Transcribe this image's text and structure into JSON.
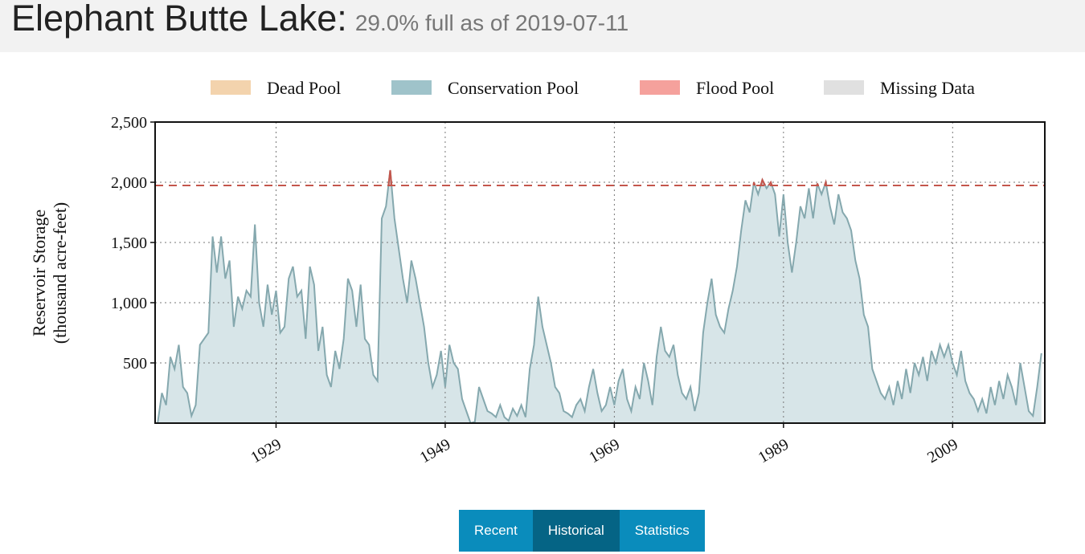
{
  "header": {
    "title": "Elephant Butte Lake:",
    "subtitle": "29.0% full as of 2019-07-11"
  },
  "chart_data": {
    "type": "area",
    "legend": [
      {
        "name": "Dead Pool",
        "color": "#f3d3ad"
      },
      {
        "name": "Conservation Pool",
        "color": "#9fc3ca"
      },
      {
        "name": "Flood Pool",
        "color": "#f5a19c"
      },
      {
        "name": "Missing Data",
        "color": "#e0e0e0"
      }
    ],
    "y_label": [
      "Reservoir Storage",
      "(thousand acre-feet)"
    ],
    "flood_pool": 1973,
    "flood_color": "#c4564c",
    "fill_color": "#d7e5e8",
    "line_color": "#85a8ae",
    "grid": true,
    "xlim": [
      1914.7,
      2019.9
    ],
    "xticks": [
      1929,
      1949,
      1969,
      1989,
      2009
    ],
    "ylim": [
      0,
      2500
    ],
    "yticks": [
      500,
      {
        "value": 1000,
        "label": "1,000"
      },
      {
        "value": 1500,
        "label": "1,500"
      },
      {
        "value": 2000,
        "label": "2,000"
      },
      {
        "value": 2500,
        "label": "2,500"
      }
    ],
    "x": [
      1915,
      1915.5,
      1916,
      1916.5,
      1917,
      1917.5,
      1918,
      1918.5,
      1919,
      1919.5,
      1920,
      1920.5,
      1921,
      1921.5,
      1922,
      1922.5,
      1923,
      1923.5,
      1924,
      1924.5,
      1925,
      1925.5,
      1926,
      1926.5,
      1927,
      1927.5,
      1928,
      1928.5,
      1929,
      1929.5,
      1930,
      1930.5,
      1931,
      1931.5,
      1932,
      1932.5,
      1933,
      1933.5,
      1934,
      1934.5,
      1935,
      1935.5,
      1936,
      1936.5,
      1937,
      1937.5,
      1938,
      1938.5,
      1939,
      1939.5,
      1940,
      1940.5,
      1941,
      1941.5,
      1942,
      1942.5,
      1943,
      1943.5,
      1944,
      1944.5,
      1945,
      1945.5,
      1946,
      1946.5,
      1947,
      1947.5,
      1948,
      1948.5,
      1949,
      1949.5,
      1950,
      1950.5,
      1951,
      1951.5,
      1952,
      1952.5,
      1953,
      1953.5,
      1954,
      1954.5,
      1955,
      1955.5,
      1956,
      1956.5,
      1957,
      1957.5,
      1958,
      1958.5,
      1959,
      1959.5,
      1960,
      1960.5,
      1961,
      1961.5,
      1962,
      1962.5,
      1963,
      1963.5,
      1964,
      1964.5,
      1965,
      1965.5,
      1966,
      1966.5,
      1967,
      1967.5,
      1968,
      1968.5,
      1969,
      1969.5,
      1970,
      1970.5,
      1971,
      1971.5,
      1972,
      1972.5,
      1973,
      1973.5,
      1974,
      1974.5,
      1975,
      1975.5,
      1976,
      1976.5,
      1977,
      1977.5,
      1978,
      1978.5,
      1979,
      1979.5,
      1980,
      1980.5,
      1981,
      1981.5,
      1982,
      1982.5,
      1983,
      1983.5,
      1984,
      1984.5,
      1985,
      1985.5,
      1986,
      1986.5,
      1987,
      1987.5,
      1988,
      1988.5,
      1989,
      1989.5,
      1990,
      1990.5,
      1991,
      1991.5,
      1992,
      1992.5,
      1993,
      1993.5,
      1994,
      1994.5,
      1995,
      1995.5,
      1996,
      1996.5,
      1997,
      1997.5,
      1998,
      1998.5,
      1999,
      1999.5,
      2000,
      2000.5,
      2001,
      2001.5,
      2002,
      2002.5,
      2003,
      2003.5,
      2004,
      2004.5,
      2005,
      2005.5,
      2006,
      2006.5,
      2007,
      2007.5,
      2008,
      2008.5,
      2009,
      2009.5,
      2010,
      2010.5,
      2011,
      2011.5,
      2012,
      2012.5,
      2013,
      2013.5,
      2014,
      2014.5,
      2015,
      2015.5,
      2016,
      2016.5,
      2017,
      2017.5,
      2018,
      2018.5,
      2019,
      2019.5
    ],
    "series": [
      {
        "name": "Conservation Pool",
        "values": [
          0,
          250,
          150,
          550,
          450,
          650,
          300,
          250,
          60,
          150,
          650,
          700,
          750,
          1550,
          1250,
          1550,
          1200,
          1350,
          800,
          1050,
          950,
          1100,
          1050,
          1650,
          1000,
          800,
          1150,
          900,
          1100,
          750,
          800,
          1200,
          1300,
          1050,
          1100,
          700,
          1300,
          1150,
          600,
          800,
          400,
          300,
          600,
          450,
          700,
          1200,
          1100,
          800,
          1150,
          700,
          650,
          400,
          350,
          1700,
          1800,
          2100,
          1700,
          1450,
          1200,
          1000,
          1350,
          1200,
          1000,
          800,
          500,
          300,
          400,
          600,
          300,
          650,
          500,
          450,
          200,
          100,
          0,
          10,
          300,
          200,
          100,
          80,
          50,
          150,
          50,
          20,
          120,
          60,
          150,
          50,
          450,
          650,
          1050,
          800,
          650,
          500,
          300,
          250,
          100,
          80,
          50,
          150,
          200,
          100,
          300,
          450,
          250,
          100,
          150,
          300,
          150,
          350,
          450,
          200,
          100,
          300,
          200,
          500,
          350,
          150,
          550,
          800,
          600,
          550,
          650,
          400,
          250,
          200,
          300,
          100,
          250,
          750,
          1000,
          1200,
          900,
          800,
          750,
          950,
          1100,
          1300,
          1600,
          1850,
          1750,
          2000,
          1900,
          2020,
          1950,
          2000,
          1900,
          1550,
          1900,
          1500,
          1250,
          1500,
          1800,
          1700,
          1950,
          1700,
          1990,
          1900,
          2000,
          1800,
          1650,
          1900,
          1750,
          1700,
          1600,
          1350,
          1200,
          900,
          800,
          450,
          350,
          250,
          200,
          300,
          150,
          350,
          200,
          450,
          250,
          500,
          400,
          550,
          350,
          600,
          500,
          650,
          550,
          650,
          500,
          400,
          600,
          350,
          250,
          200,
          100,
          200,
          80,
          300,
          150,
          350,
          200,
          400,
          300,
          150,
          500,
          300,
          100,
          60,
          300,
          580
        ]
      }
    ]
  },
  "buttons": [
    {
      "label": "Recent"
    },
    {
      "label": "Historical",
      "active": true
    },
    {
      "label": "Statistics"
    }
  ]
}
